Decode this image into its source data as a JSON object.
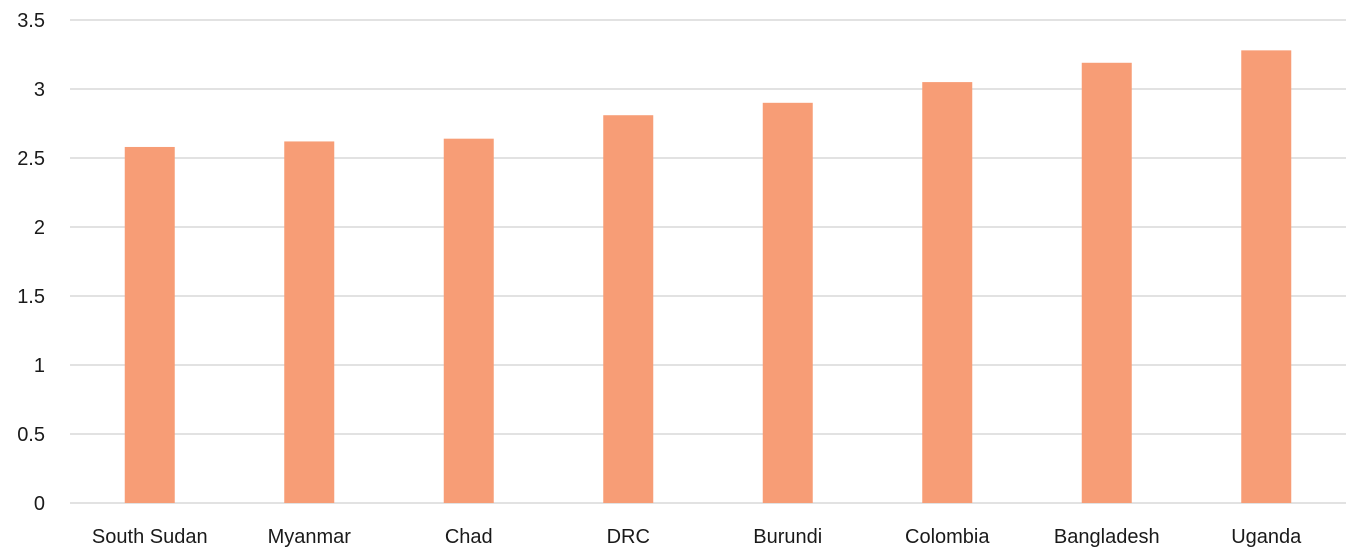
{
  "chart_data": {
    "type": "bar",
    "title": "",
    "xlabel": "",
    "ylabel": "",
    "categories": [
      "South Sudan",
      "Myanmar",
      "Chad",
      "DRC",
      "Burundi",
      "Colombia",
      "Bangladesh",
      "Uganda"
    ],
    "values": [
      2.58,
      2.62,
      2.64,
      2.81,
      2.9,
      3.05,
      3.19,
      3.28
    ],
    "ylim": [
      0,
      3.5
    ],
    "yticks": [
      "0",
      "0.5",
      "1",
      "1.5",
      "2",
      "2.5",
      "3",
      "3.5"
    ],
    "grid": true,
    "legend": "none",
    "colors": {
      "bar": "#F79D76",
      "gridline": "#D9D9D9",
      "text": "#1A1A1A"
    }
  }
}
